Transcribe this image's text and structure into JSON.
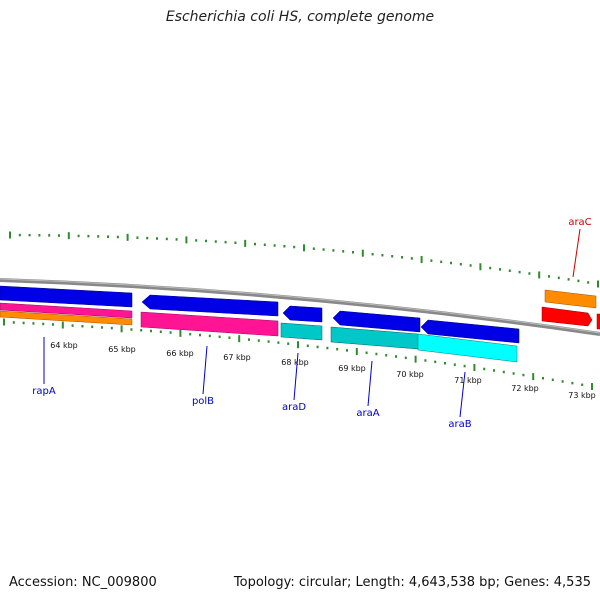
{
  "title": "Escherichia coli HS, complete genome",
  "footer": {
    "accession": "Accession: NC_009800",
    "stats": "Topology: circular; Length: 4,643,538 bp; Genes: 4,535"
  },
  "colors": {
    "backbone": "#888888",
    "tick": "#2e8b2e",
    "gene_label_blue": "#0000cc",
    "gene_label_red": "#cc0000",
    "cds_blue": "#0000e6",
    "rrna_pink": "#ff1493",
    "misc_orange": "#ff8c00",
    "cyan_light": "#00ffff",
    "cyan_dark": "#00c8c8",
    "red": "#ff0000"
  },
  "scale_labels": [
    "64 kbp",
    "65 kbp",
    "66 kbp",
    "67 kbp",
    "68 kbp",
    "69 kbp",
    "70 kbp",
    "71 kbp",
    "72 kbp",
    "73 kbp"
  ],
  "gene_labels": [
    {
      "name": "rapA",
      "color": "gene_label_blue"
    },
    {
      "name": "polB",
      "color": "gene_label_blue"
    },
    {
      "name": "araD",
      "color": "gene_label_blue"
    },
    {
      "name": "araA",
      "color": "gene_label_blue"
    },
    {
      "name": "araB",
      "color": "gene_label_blue"
    },
    {
      "name": "araC",
      "color": "gene_label_red"
    }
  ]
}
